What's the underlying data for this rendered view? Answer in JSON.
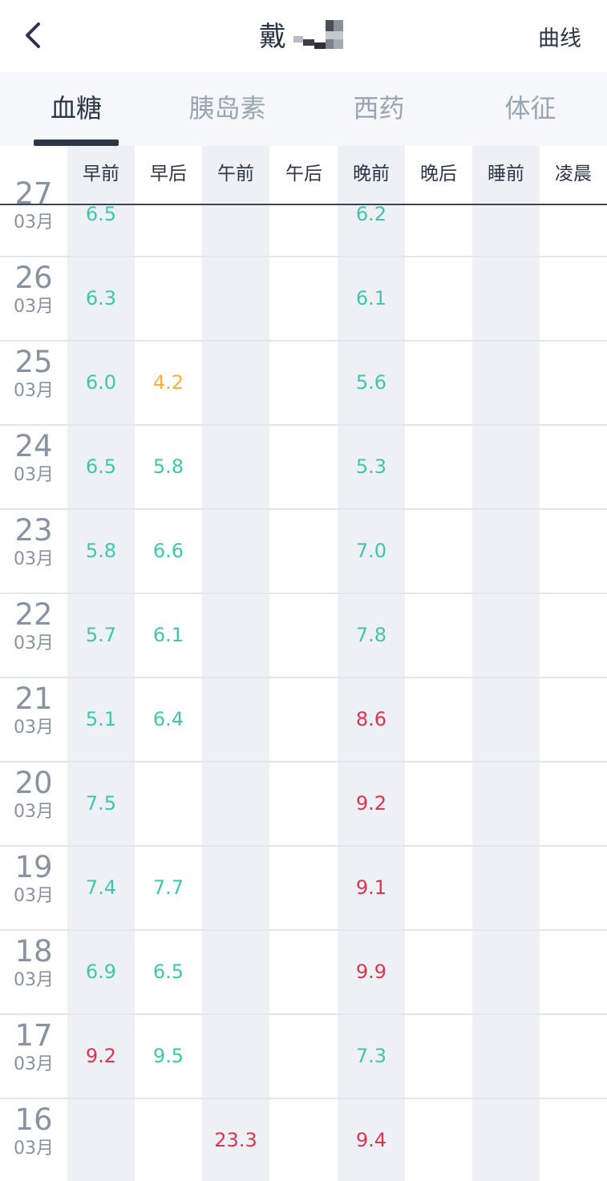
{
  "header": {
    "title": "戴",
    "right_label": "曲线",
    "back_icon": "chevron-left-icon"
  },
  "tabs": [
    "血糖",
    "胰岛素",
    "西药",
    "体征"
  ],
  "active_tab": 0,
  "columns": [
    "早前",
    "早后",
    "午前",
    "午后",
    "晚前",
    "晚后",
    "睡前",
    "凌晨"
  ],
  "colors": {
    "normal": "#3fc7a7",
    "low": "#f0b43c",
    "high": "#e0334f",
    "accent": "#2c3646"
  },
  "rows": [
    {
      "day": "27",
      "month": "03月",
      "values": [
        {
          "col": 0,
          "v": "6.5",
          "s": "normal"
        },
        {
          "col": 4,
          "v": "6.2",
          "s": "normal"
        }
      ]
    },
    {
      "day": "26",
      "month": "03月",
      "values": [
        {
          "col": 0,
          "v": "6.3",
          "s": "normal"
        },
        {
          "col": 4,
          "v": "6.1",
          "s": "normal"
        }
      ]
    },
    {
      "day": "25",
      "month": "03月",
      "values": [
        {
          "col": 0,
          "v": "6.0",
          "s": "normal"
        },
        {
          "col": 1,
          "v": "4.2",
          "s": "low"
        },
        {
          "col": 4,
          "v": "5.6",
          "s": "normal"
        }
      ]
    },
    {
      "day": "24",
      "month": "03月",
      "values": [
        {
          "col": 0,
          "v": "6.5",
          "s": "normal"
        },
        {
          "col": 1,
          "v": "5.8",
          "s": "normal"
        },
        {
          "col": 4,
          "v": "5.3",
          "s": "normal"
        }
      ]
    },
    {
      "day": "23",
      "month": "03月",
      "values": [
        {
          "col": 0,
          "v": "5.8",
          "s": "normal"
        },
        {
          "col": 1,
          "v": "6.6",
          "s": "normal"
        },
        {
          "col": 4,
          "v": "7.0",
          "s": "normal"
        }
      ]
    },
    {
      "day": "22",
      "month": "03月",
      "values": [
        {
          "col": 0,
          "v": "5.7",
          "s": "normal"
        },
        {
          "col": 1,
          "v": "6.1",
          "s": "normal"
        },
        {
          "col": 4,
          "v": "7.8",
          "s": "normal"
        }
      ]
    },
    {
      "day": "21",
      "month": "03月",
      "values": [
        {
          "col": 0,
          "v": "5.1",
          "s": "normal"
        },
        {
          "col": 1,
          "v": "6.4",
          "s": "normal"
        },
        {
          "col": 4,
          "v": "8.6",
          "s": "high"
        }
      ]
    },
    {
      "day": "20",
      "month": "03月",
      "values": [
        {
          "col": 0,
          "v": "7.5",
          "s": "normal"
        },
        {
          "col": 4,
          "v": "9.2",
          "s": "high"
        }
      ]
    },
    {
      "day": "19",
      "month": "03月",
      "values": [
        {
          "col": 0,
          "v": "7.4",
          "s": "normal"
        },
        {
          "col": 1,
          "v": "7.7",
          "s": "normal"
        },
        {
          "col": 4,
          "v": "9.1",
          "s": "high"
        }
      ]
    },
    {
      "day": "18",
      "month": "03月",
      "values": [
        {
          "col": 0,
          "v": "6.9",
          "s": "normal"
        },
        {
          "col": 1,
          "v": "6.5",
          "s": "normal"
        },
        {
          "col": 4,
          "v": "9.9",
          "s": "high"
        }
      ]
    },
    {
      "day": "17",
      "month": "03月",
      "values": [
        {
          "col": 0,
          "v": "9.2",
          "s": "high"
        },
        {
          "col": 1,
          "v": "9.5",
          "s": "normal"
        },
        {
          "col": 4,
          "v": "7.3",
          "s": "normal"
        }
      ]
    },
    {
      "day": "16",
      "month": "03月",
      "values": [
        {
          "col": 2,
          "v": "23.3",
          "s": "high"
        },
        {
          "col": 4,
          "v": "9.4",
          "s": "high"
        }
      ]
    }
  ]
}
